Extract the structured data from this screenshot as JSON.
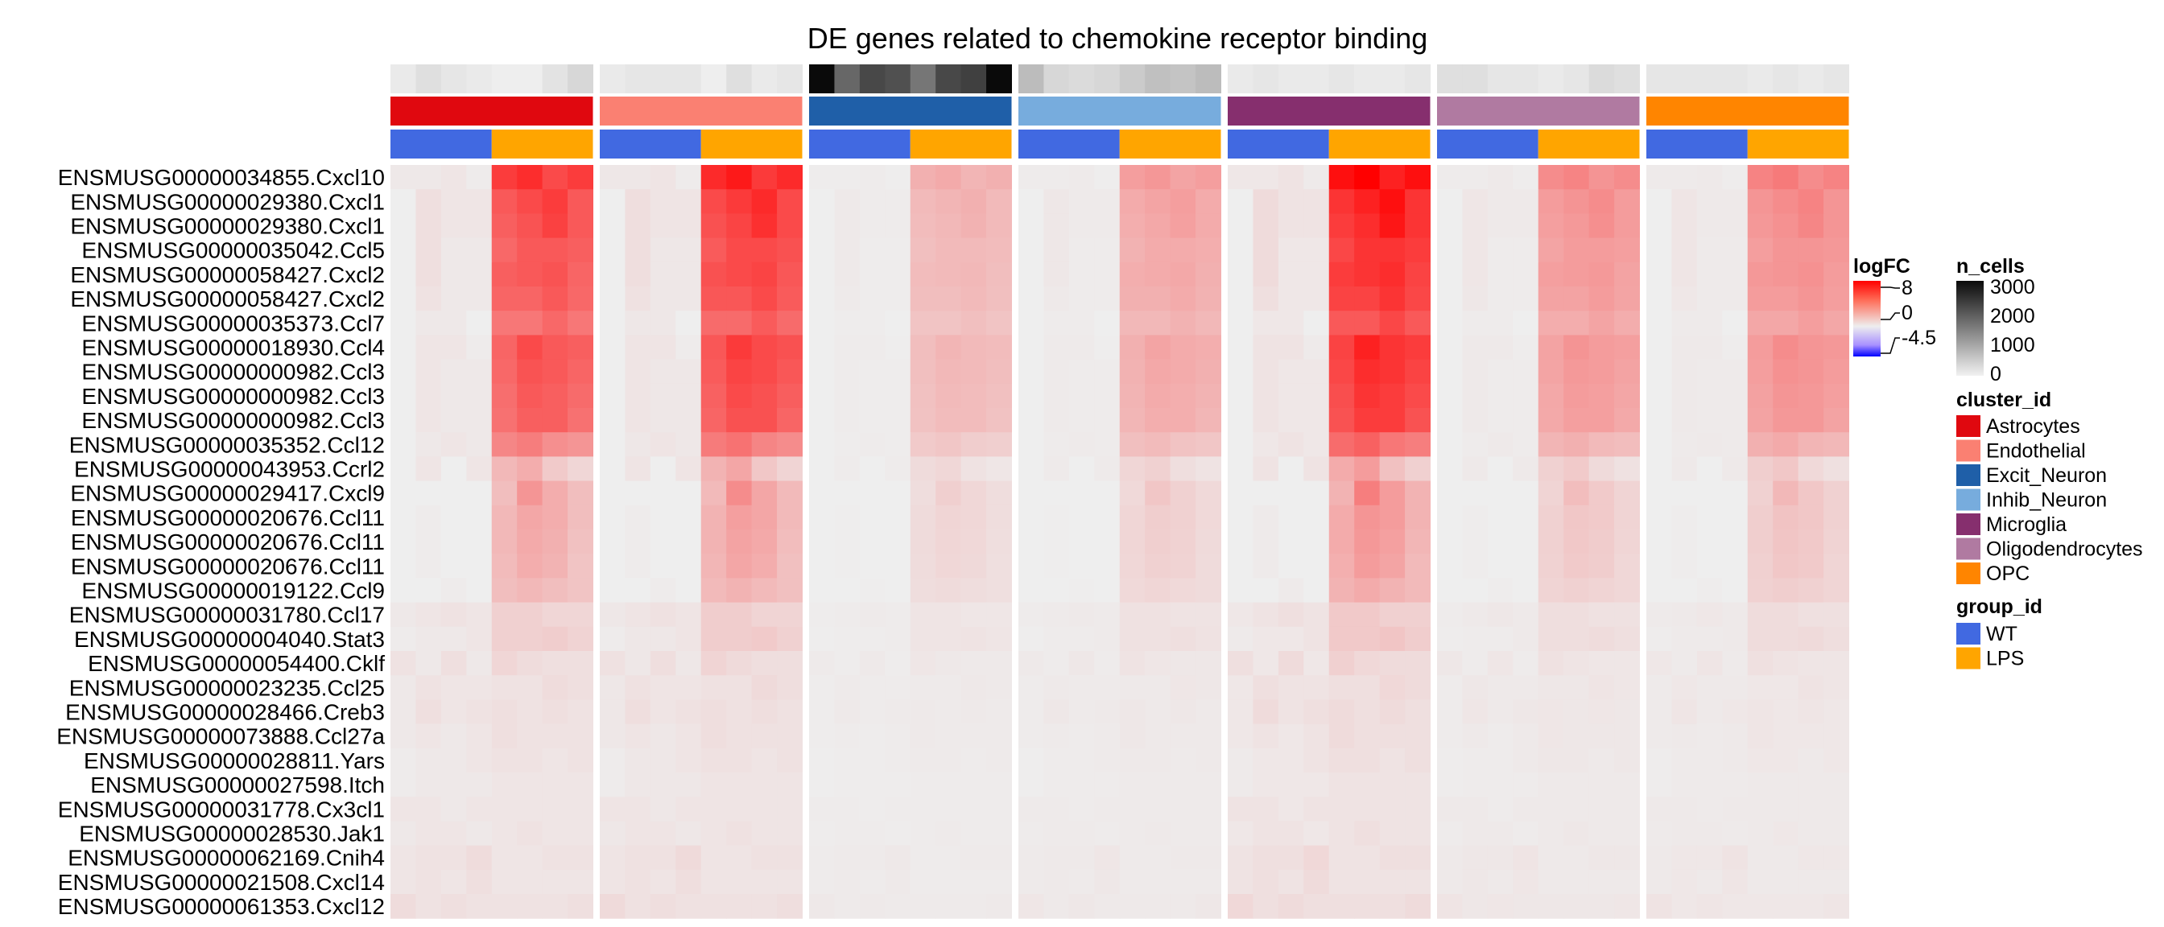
{
  "chart_data": {
    "type": "heatmap",
    "title": "DE genes related to chemokine receptor binding",
    "samples_per_cluster": 8,
    "rows": [
      "ENSMUSG00000034855.Cxcl10",
      "ENSMUSG00000029380.Cxcl1",
      "ENSMUSG00000029380.Cxcl1",
      "ENSMUSG00000035042.Ccl5",
      "ENSMUSG00000058427.Cxcl2",
      "ENSMUSG00000058427.Cxcl2",
      "ENSMUSG00000035373.Ccl7",
      "ENSMUSG00000018930.Ccl4",
      "ENSMUSG00000000982.Ccl3",
      "ENSMUSG00000000982.Ccl3",
      "ENSMUSG00000000982.Ccl3",
      "ENSMUSG00000035352.Ccl12",
      "ENSMUSG00000043953.Ccrl2",
      "ENSMUSG00000029417.Cxcl9",
      "ENSMUSG00000020676.Ccl11",
      "ENSMUSG00000020676.Ccl11",
      "ENSMUSG00000020676.Ccl11",
      "ENSMUSG00000019122.Ccl9",
      "ENSMUSG00000031780.Ccl17",
      "ENSMUSG00000004040.Stat3",
      "ENSMUSG00000054400.Cklf",
      "ENSMUSG00000023235.Ccl25",
      "ENSMUSG00000028466.Creb3",
      "ENSMUSG00000073888.Ccl27a",
      "ENSMUSG00000028811.Yars",
      "ENSMUSG00000027598.Itch",
      "ENSMUSG00000031778.Cx3cl1",
      "ENSMUSG00000028530.Jak1",
      "ENSMUSG00000062169.Cnih4",
      "ENSMUSG00000021508.Cxcl14",
      "ENSMUSG00000061353.Cxcl12"
    ],
    "clusters": [
      {
        "name": "Astrocytes",
        "color": "#E0080F"
      },
      {
        "name": "Endothelial",
        "color": "#FA8072"
      },
      {
        "name": "Excit_Neuron",
        "color": "#1F5FA8"
      },
      {
        "name": "Inhib_Neuron",
        "color": "#77ACDD"
      },
      {
        "name": "Microglia",
        "color": "#862F6E"
      },
      {
        "name": "Oligodendrocytes",
        "color": "#B07AA1"
      },
      {
        "name": "OPC",
        "color": "#FF8500"
      }
    ],
    "groups": [
      {
        "name": "WT",
        "color": "#4169E1"
      },
      {
        "name": "LPS",
        "color": "#FFA500"
      }
    ],
    "n_cells": [
      [
        100,
        250,
        150,
        100,
        50,
        50,
        200,
        350
      ],
      [
        100,
        150,
        150,
        150,
        50,
        250,
        100,
        150
      ],
      [
        3000,
        1800,
        2200,
        2100,
        1600,
        2200,
        2300,
        3100
      ],
      [
        700,
        350,
        300,
        350,
        500,
        650,
        600,
        700
      ],
      [
        100,
        150,
        100,
        100,
        150,
        100,
        100,
        150
      ],
      [
        250,
        250,
        150,
        150,
        100,
        150,
        300,
        250
      ],
      [
        150,
        150,
        150,
        150,
        100,
        150,
        100,
        150
      ]
    ],
    "logFC_row_profiles": [
      [
        0.2,
        0.2,
        0.3,
        0.1,
        6.0,
        6.5,
        5.5,
        6.0
      ],
      [
        0.0,
        0.5,
        0.3,
        0.3,
        5.0,
        5.5,
        6.0,
        5.0
      ],
      [
        0.0,
        0.5,
        0.3,
        0.3,
        4.8,
        5.2,
        5.8,
        5.0
      ],
      [
        0.0,
        0.5,
        0.2,
        0.2,
        4.5,
        5.0,
        5.0,
        4.8
      ],
      [
        0.0,
        0.5,
        0.2,
        0.2,
        4.8,
        5.0,
        5.2,
        4.6
      ],
      [
        0.0,
        0.4,
        0.2,
        0.2,
        4.6,
        4.6,
        5.0,
        4.5
      ],
      [
        0.0,
        0.2,
        0.2,
        0.0,
        4.0,
        4.0,
        4.5,
        4.0
      ],
      [
        0.0,
        0.3,
        0.3,
        0.1,
        4.6,
        5.5,
        5.0,
        4.8
      ],
      [
        0.0,
        0.3,
        0.2,
        0.2,
        4.5,
        5.2,
        5.0,
        4.6
      ],
      [
        0.0,
        0.3,
        0.2,
        0.2,
        4.3,
        5.0,
        4.8,
        4.4
      ],
      [
        0.0,
        0.3,
        0.2,
        0.2,
        4.2,
        4.8,
        4.8,
        4.2
      ],
      [
        0.0,
        0.2,
        0.3,
        0.2,
        3.5,
        3.8,
        3.2,
        3.0
      ],
      [
        0.0,
        0.3,
        0.0,
        0.3,
        1.8,
        2.2,
        1.2,
        0.8
      ],
      [
        0.0,
        0.0,
        0.0,
        0.0,
        1.6,
        3.0,
        2.2,
        1.6
      ],
      [
        0.0,
        0.1,
        0.0,
        0.0,
        1.8,
        2.4,
        2.2,
        1.6
      ],
      [
        0.0,
        0.1,
        0.0,
        0.0,
        1.8,
        2.3,
        2.1,
        1.5
      ],
      [
        0.0,
        0.1,
        0.0,
        0.0,
        1.7,
        2.2,
        2.0,
        1.4
      ],
      [
        0.0,
        0.0,
        0.1,
        0.0,
        1.6,
        1.8,
        1.6,
        1.4
      ],
      [
        0.2,
        0.3,
        0.4,
        0.3,
        1.0,
        1.0,
        0.8,
        0.8
      ],
      [
        0.1,
        0.2,
        0.2,
        0.3,
        1.0,
        1.0,
        1.1,
        0.9
      ],
      [
        0.4,
        0.2,
        0.5,
        0.2,
        0.8,
        0.6,
        0.5,
        0.5
      ],
      [
        0.2,
        0.4,
        0.3,
        0.3,
        0.4,
        0.4,
        0.6,
        0.5
      ],
      [
        0.2,
        0.5,
        0.3,
        0.4,
        0.5,
        0.4,
        0.5,
        0.4
      ],
      [
        0.2,
        0.3,
        0.2,
        0.3,
        0.5,
        0.4,
        0.4,
        0.4
      ],
      [
        0.1,
        0.2,
        0.2,
        0.3,
        0.4,
        0.4,
        0.3,
        0.4
      ],
      [
        0.1,
        0.2,
        0.2,
        0.2,
        0.3,
        0.3,
        0.3,
        0.3
      ],
      [
        0.3,
        0.3,
        0.2,
        0.3,
        0.3,
        0.3,
        0.3,
        0.3
      ],
      [
        0.2,
        0.3,
        0.3,
        0.2,
        0.3,
        0.4,
        0.3,
        0.3
      ],
      [
        0.3,
        0.4,
        0.4,
        0.6,
        0.3,
        0.3,
        0.4,
        0.4
      ],
      [
        0.3,
        0.4,
        0.3,
        0.5,
        0.3,
        0.3,
        0.3,
        0.3
      ],
      [
        0.6,
        0.4,
        0.5,
        0.4,
        0.4,
        0.4,
        0.4,
        0.5
      ]
    ],
    "cluster_logFC_scale": [
      1.0,
      1.1,
      0.35,
      0.45,
      1.25,
      0.55,
      0.6
    ],
    "logFC_range": [
      -4.5,
      8
    ],
    "legend_logFC": {
      "title": "logFC",
      "ticks": [
        "8",
        "0",
        "-4.5"
      ]
    },
    "legend_n_cells": {
      "title": "n_cells",
      "ticks": [
        "3000",
        "2000",
        "1000",
        "0"
      ],
      "range": [
        0,
        3000
      ]
    },
    "legend_cluster": {
      "title": "cluster_id"
    },
    "legend_group": {
      "title": "group_id"
    }
  }
}
